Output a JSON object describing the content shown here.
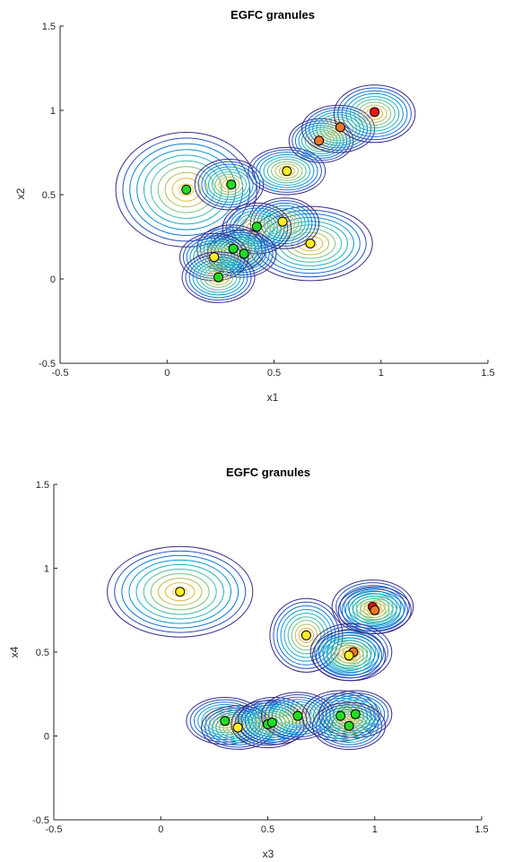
{
  "chart_data": [
    {
      "type": "scatter",
      "title": "EGFC granules",
      "xlabel": "x1",
      "ylabel": "x2",
      "xlim": [
        -0.5,
        1.5
      ],
      "ylim": [
        -0.5,
        1.5
      ],
      "xticks": [
        -0.5,
        0,
        0.5,
        1,
        1.5
      ],
      "yticks": [
        -0.5,
        0,
        0.5,
        1,
        1.5
      ],
      "xtick_labels": [
        "-0.5",
        "0",
        "0.5",
        "1",
        "1.5"
      ],
      "ytick_labels": [
        "-0.5",
        "0",
        "0.5",
        "1",
        "1.5"
      ],
      "grid": false,
      "colors": {
        "green": "#22dd22",
        "yellow": "#ffee22",
        "orange": "#ee7722",
        "red": "#ee1111"
      },
      "granules": [
        {
          "cx": 0.09,
          "cy": 0.53,
          "rx": 0.33,
          "ry": 0.34
        },
        {
          "cx": 0.29,
          "cy": 0.56,
          "rx": 0.16,
          "ry": 0.15
        },
        {
          "cx": 0.56,
          "cy": 0.64,
          "rx": 0.18,
          "ry": 0.14
        },
        {
          "cx": 0.72,
          "cy": 0.82,
          "rx": 0.15,
          "ry": 0.13
        },
        {
          "cx": 0.8,
          "cy": 0.89,
          "rx": 0.17,
          "ry": 0.14
        },
        {
          "cx": 0.97,
          "cy": 0.98,
          "rx": 0.19,
          "ry": 0.17
        },
        {
          "cx": 0.67,
          "cy": 0.21,
          "rx": 0.29,
          "ry": 0.22
        },
        {
          "cx": 0.55,
          "cy": 0.33,
          "rx": 0.16,
          "ry": 0.15
        },
        {
          "cx": 0.42,
          "cy": 0.3,
          "rx": 0.16,
          "ry": 0.15
        },
        {
          "cx": 0.3,
          "cy": 0.18,
          "rx": 0.16,
          "ry": 0.14
        },
        {
          "cx": 0.35,
          "cy": 0.15,
          "rx": 0.16,
          "ry": 0.14
        },
        {
          "cx": 0.22,
          "cy": 0.13,
          "rx": 0.16,
          "ry": 0.14
        },
        {
          "cx": 0.24,
          "cy": 0.01,
          "rx": 0.17,
          "ry": 0.15
        }
      ],
      "points": [
        {
          "x": 0.09,
          "y": 0.53,
          "color": "green"
        },
        {
          "x": 0.3,
          "y": 0.56,
          "color": "green"
        },
        {
          "x": 0.56,
          "y": 0.64,
          "color": "yellow"
        },
        {
          "x": 0.71,
          "y": 0.82,
          "color": "orange"
        },
        {
          "x": 0.81,
          "y": 0.9,
          "color": "orange"
        },
        {
          "x": 0.97,
          "y": 0.99,
          "color": "red"
        },
        {
          "x": 0.67,
          "y": 0.21,
          "color": "yellow"
        },
        {
          "x": 0.54,
          "y": 0.34,
          "color": "yellow"
        },
        {
          "x": 0.42,
          "y": 0.31,
          "color": "green"
        },
        {
          "x": 0.31,
          "y": 0.18,
          "color": "green"
        },
        {
          "x": 0.36,
          "y": 0.15,
          "color": "green"
        },
        {
          "x": 0.22,
          "y": 0.13,
          "color": "yellow"
        },
        {
          "x": 0.24,
          "y": 0.01,
          "color": "green"
        }
      ]
    },
    {
      "type": "scatter",
      "title": "EGFC granules",
      "xlabel": "x3",
      "ylabel": "x4",
      "xlim": [
        -0.5,
        1.5
      ],
      "ylim": [
        -0.5,
        1.5
      ],
      "xticks": [
        -0.5,
        0,
        0.5,
        1,
        1.5
      ],
      "yticks": [
        -0.5,
        0,
        0.5,
        1,
        1.5
      ],
      "xtick_labels": [
        "-0.5",
        "0",
        "0.5",
        "1",
        "1.5"
      ],
      "ytick_labels": [
        "-0.5",
        "0",
        "0.5",
        "1",
        "1.5"
      ],
      "grid": false,
      "colors": {
        "green": "#22dd22",
        "yellow": "#ffee22",
        "orange": "#ee7722",
        "red": "#ee1111"
      },
      "granules": [
        {
          "cx": 0.09,
          "cy": 0.86,
          "rx": 0.34,
          "ry": 0.27
        },
        {
          "cx": 0.68,
          "cy": 0.6,
          "rx": 0.17,
          "ry": 0.22
        },
        {
          "cx": 0.99,
          "cy": 0.77,
          "rx": 0.19,
          "ry": 0.16
        },
        {
          "cx": 1.0,
          "cy": 0.75,
          "rx": 0.17,
          "ry": 0.14
        },
        {
          "cx": 0.89,
          "cy": 0.5,
          "rx": 0.19,
          "ry": 0.17
        },
        {
          "cx": 0.88,
          "cy": 0.48,
          "rx": 0.17,
          "ry": 0.15
        },
        {
          "cx": 0.3,
          "cy": 0.09,
          "rx": 0.18,
          "ry": 0.14
        },
        {
          "cx": 0.36,
          "cy": 0.05,
          "rx": 0.17,
          "ry": 0.13
        },
        {
          "cx": 0.5,
          "cy": 0.07,
          "rx": 0.17,
          "ry": 0.14
        },
        {
          "cx": 0.53,
          "cy": 0.09,
          "rx": 0.17,
          "ry": 0.14
        },
        {
          "cx": 0.64,
          "cy": 0.12,
          "rx": 0.17,
          "ry": 0.14
        },
        {
          "cx": 0.84,
          "cy": 0.12,
          "rx": 0.18,
          "ry": 0.15
        },
        {
          "cx": 0.91,
          "cy": 0.13,
          "rx": 0.17,
          "ry": 0.14
        },
        {
          "cx": 0.88,
          "cy": 0.06,
          "rx": 0.17,
          "ry": 0.14
        }
      ],
      "points": [
        {
          "x": 0.09,
          "y": 0.86,
          "color": "yellow"
        },
        {
          "x": 0.68,
          "y": 0.6,
          "color": "yellow"
        },
        {
          "x": 0.99,
          "y": 0.77,
          "color": "red"
        },
        {
          "x": 1.0,
          "y": 0.75,
          "color": "orange"
        },
        {
          "x": 0.9,
          "y": 0.5,
          "color": "orange"
        },
        {
          "x": 0.88,
          "y": 0.48,
          "color": "yellow"
        },
        {
          "x": 0.3,
          "y": 0.09,
          "color": "green"
        },
        {
          "x": 0.36,
          "y": 0.05,
          "color": "yellow"
        },
        {
          "x": 0.5,
          "y": 0.07,
          "color": "green"
        },
        {
          "x": 0.52,
          "y": 0.08,
          "color": "green"
        },
        {
          "x": 0.64,
          "y": 0.12,
          "color": "green"
        },
        {
          "x": 0.84,
          "y": 0.12,
          "color": "green"
        },
        {
          "x": 0.91,
          "y": 0.13,
          "color": "green"
        },
        {
          "x": 0.88,
          "y": 0.06,
          "color": "green"
        }
      ]
    }
  ]
}
